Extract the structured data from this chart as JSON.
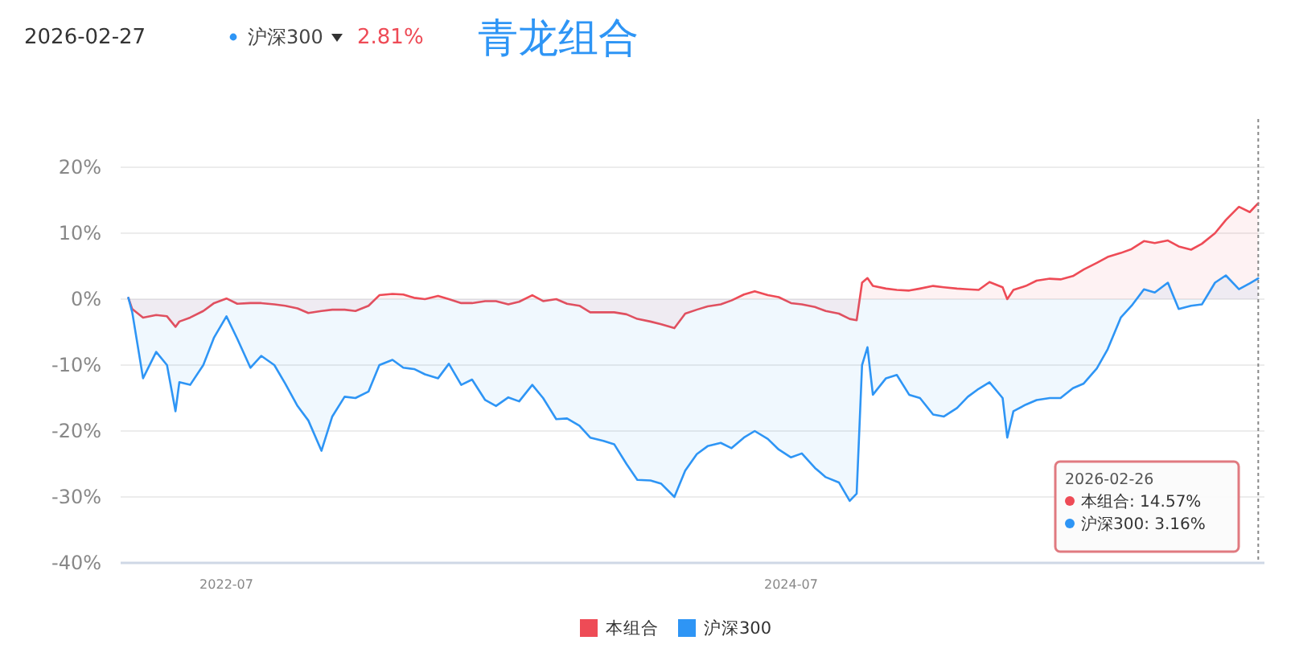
{
  "chart_data": {
    "type": "area",
    "title": "青龙组合",
    "annotations": [
      "2026-02-27",
      "沪深300",
      "2.81%",
      "2026-02-26",
      "本组合: 14.57%",
      "沪深300: 3.16%"
    ],
    "x": [
      "2022-02-24",
      "2022-03-01",
      "2022-03-15",
      "2022-04-01",
      "2022-04-15",
      "2022-04-26",
      "2022-05-01",
      "2022-05-15",
      "2022-06-01",
      "2022-06-15",
      "2022-07-01",
      "2022-07-15",
      "2022-08-01",
      "2022-08-15",
      "2022-09-01",
      "2022-09-15",
      "2022-10-01",
      "2022-10-15",
      "2022-11-01",
      "2022-11-15",
      "2022-12-01",
      "2022-12-15",
      "2023-01-01",
      "2023-01-15",
      "2023-02-01",
      "2023-02-15",
      "2023-03-01",
      "2023-03-15",
      "2023-04-01",
      "2023-04-15",
      "2023-05-01",
      "2023-05-15",
      "2023-06-01",
      "2023-06-15",
      "2023-07-01",
      "2023-07-15",
      "2023-08-01",
      "2023-08-15",
      "2023-09-01",
      "2023-09-15",
      "2023-10-01",
      "2023-10-15",
      "2023-11-01",
      "2023-11-15",
      "2023-12-01",
      "2023-12-15",
      "2024-01-01",
      "2024-01-15",
      "2024-02-01",
      "2024-02-15",
      "2024-03-01",
      "2024-03-15",
      "2024-04-01",
      "2024-04-15",
      "2024-05-01",
      "2024-05-15",
      "2024-06-01",
      "2024-06-15",
      "2024-07-01",
      "2024-07-15",
      "2024-08-01",
      "2024-08-15",
      "2024-09-01",
      "2024-09-15",
      "2024-09-24",
      "2024-10-01",
      "2024-10-08",
      "2024-10-15",
      "2024-11-01",
      "2024-11-15",
      "2024-12-01",
      "2024-12-15",
      "2025-01-01",
      "2025-01-15",
      "2025-02-01",
      "2025-02-15",
      "2025-03-01",
      "2025-03-15",
      "2025-04-01",
      "2025-04-07",
      "2025-04-15",
      "2025-05-01",
      "2025-05-15",
      "2025-06-01",
      "2025-06-15",
      "2025-07-01",
      "2025-07-15",
      "2025-08-01",
      "2025-08-15",
      "2025-09-01",
      "2025-09-15",
      "2025-10-01",
      "2025-10-15",
      "2025-11-01",
      "2025-11-15",
      "2025-12-01",
      "2025-12-15",
      "2026-01-01",
      "2026-01-15",
      "2026-02-01",
      "2026-02-15",
      "2026-02-26"
    ],
    "series": [
      {
        "name": "本组合",
        "color": "#ee4b56",
        "values": [
          0.2,
          -1.5,
          -2.8,
          -2.4,
          -2.6,
          -4.2,
          -3.4,
          -2.8,
          -1.8,
          -0.6,
          0.1,
          -0.7,
          -0.6,
          -0.6,
          -0.8,
          -1,
          -1.4,
          -2.1,
          -1.8,
          -1.6,
          -1.6,
          -1.8,
          -1,
          0.6,
          0.8,
          0.7,
          0.2,
          0,
          0.5,
          0,
          -0.6,
          -0.6,
          -0.3,
          -0.3,
          -0.8,
          -0.4,
          0.6,
          -0.3,
          0,
          -0.7,
          -1,
          -2,
          -2,
          -2,
          -2.3,
          -3,
          -3.4,
          -3.8,
          -4.4,
          -2.2,
          -1.6,
          -1.1,
          -0.8,
          -0.2,
          0.7,
          1.2,
          0.6,
          0.3,
          -0.6,
          -0.8,
          -1.2,
          -1.8,
          -2.2,
          -3,
          -3.2,
          2.5,
          3.2,
          2,
          1.6,
          1.4,
          1.3,
          1.6,
          2,
          1.8,
          1.6,
          1.5,
          1.4,
          2.6,
          1.8,
          0,
          1.4,
          2,
          2.8,
          3.1,
          3,
          3.5,
          4.5,
          5.5,
          6.4,
          7,
          7.6,
          8.8,
          8.5,
          8.9,
          8,
          7.5,
          8.4,
          10,
          12,
          14,
          13.2,
          14.57
        ]
      },
      {
        "name": "沪深300",
        "color": "#2e95f5",
        "values": [
          0.2,
          -2,
          -12,
          -8,
          -10,
          -17,
          -12.6,
          -13,
          -10,
          -5.8,
          -2.6,
          -6,
          -10.4,
          -8.6,
          -10,
          -12.8,
          -16.2,
          -18.4,
          -23,
          -17.8,
          -14.8,
          -15,
          -14,
          -10,
          -9.2,
          -10.4,
          -10.6,
          -11.4,
          -12,
          -9.8,
          -13,
          -12.2,
          -15.3,
          -16.2,
          -14.9,
          -15.5,
          -13,
          -15,
          -18.2,
          -18.1,
          -19.2,
          -21,
          -21.5,
          -22,
          -25,
          -27.4,
          -27.5,
          -28,
          -30,
          -26,
          -23.5,
          -22.3,
          -21.8,
          -22.6,
          -21,
          -20,
          -21.2,
          -22.8,
          -24,
          -23.4,
          -25.6,
          -27,
          -27.8,
          -30.6,
          -29.5,
          -10,
          -7.3,
          -14.5,
          -12,
          -11.5,
          -14.5,
          -15,
          -17.5,
          -17.8,
          -16.5,
          -14.8,
          -13.6,
          -12.6,
          -15,
          -21,
          -17,
          -16,
          -15.3,
          -15,
          -15,
          -13.5,
          -12.8,
          -10.5,
          -7.6,
          -2.8,
          -1,
          1.5,
          1,
          2.5,
          -1.5,
          -1,
          -0.8,
          2.5,
          3.6,
          1.5,
          2.4,
          3.16
        ]
      }
    ],
    "xlim": [
      "2022-02-14",
      "2026-03-06"
    ],
    "xticks": [
      "2022-07",
      "2024-07"
    ],
    "ylim": [
      -40,
      20
    ],
    "yticks": [
      {
        "value": -40,
        "label": "-40%"
      },
      {
        "value": -30,
        "label": "-30%"
      },
      {
        "value": -20,
        "label": "-20%"
      },
      {
        "value": -10,
        "label": "-10%"
      },
      {
        "value": 0,
        "label": "0%"
      },
      {
        "value": 10,
        "label": "10%"
      },
      {
        "value": 20,
        "label": "20%"
      }
    ],
    "ref_lines": [
      {
        "axis": "x",
        "value": "2026-02-26",
        "color": "#888888",
        "line_style": "dotted"
      }
    ],
    "grid": "y",
    "legend": "bottom"
  }
}
